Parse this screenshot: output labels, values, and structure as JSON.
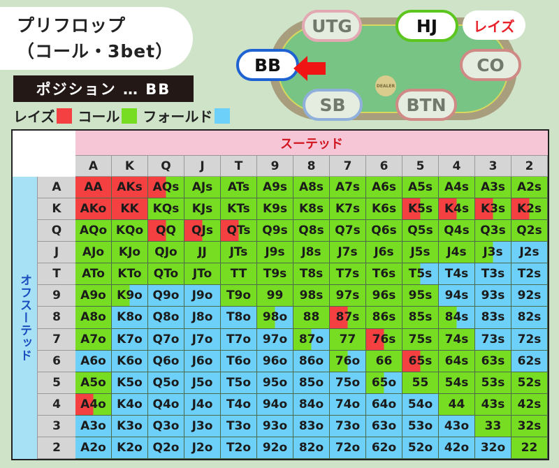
{
  "title": {
    "line1": "プリフロップ",
    "line2": "（コール・3bet）"
  },
  "position_label": "ポジション … BB",
  "legend": [
    {
      "label": "レイズ",
      "color": "#f44040"
    },
    {
      "label": "コール",
      "color": "#77dd22"
    },
    {
      "label": "フォールド",
      "color": "#6cd0f8"
    }
  ],
  "table": {
    "seats": {
      "utg": "UTG",
      "hj": "HJ",
      "bb": "BB",
      "co": "CO",
      "sb": "SB",
      "btn": "BTN"
    },
    "dealer": "DEALER",
    "hj_action": "レイズ",
    "hero_arrow_icon": "arrow-left-icon"
  },
  "chart": {
    "suited_label": "スーテッド",
    "offsuit_label": "オフスーテッド",
    "ranks": [
      "A",
      "K",
      "Q",
      "J",
      "T",
      "9",
      "8",
      "7",
      "6",
      "5",
      "4",
      "3",
      "2"
    ],
    "colors": {
      "raise": "#f44040",
      "call": "#77dd22",
      "fold": "#6cd0f8"
    },
    "rows": [
      [
        [
          "AA",
          "raise"
        ],
        [
          "AKs",
          "raise"
        ],
        [
          "AQs",
          "raise/call"
        ],
        [
          "AJs",
          "call"
        ],
        [
          "ATs",
          "call"
        ],
        [
          "A9s",
          "call"
        ],
        [
          "A8s",
          "call"
        ],
        [
          "A7s",
          "call"
        ],
        [
          "A6s",
          "call"
        ],
        [
          "A5s",
          "call"
        ],
        [
          "A4s",
          "call"
        ],
        [
          "A3s",
          "call"
        ],
        [
          "A2s",
          "call"
        ]
      ],
      [
        [
          "AKo",
          "raise"
        ],
        [
          "KK",
          "raise"
        ],
        [
          "KQs",
          "call"
        ],
        [
          "KJs",
          "call"
        ],
        [
          "KTs",
          "call"
        ],
        [
          "K9s",
          "call"
        ],
        [
          "K8s",
          "call"
        ],
        [
          "K7s",
          "call"
        ],
        [
          "K6s",
          "call"
        ],
        [
          "K5s",
          "raise/call"
        ],
        [
          "K4s",
          "raise/call"
        ],
        [
          "K3s",
          "raise/call"
        ],
        [
          "K2s",
          "raise/call"
        ]
      ],
      [
        [
          "AQo",
          "call"
        ],
        [
          "KQo",
          "call"
        ],
        [
          "QQ",
          "raise/call"
        ],
        [
          "QJs",
          "raise/call"
        ],
        [
          "QTs",
          "raise/call"
        ],
        [
          "Q9s",
          "call"
        ],
        [
          "Q8s",
          "call"
        ],
        [
          "Q7s",
          "call"
        ],
        [
          "Q6s",
          "call"
        ],
        [
          "Q5s",
          "call"
        ],
        [
          "Q4s",
          "call"
        ],
        [
          "Q3s",
          "call"
        ],
        [
          "Q2s",
          "call"
        ]
      ],
      [
        [
          "AJo",
          "call"
        ],
        [
          "KJo",
          "call"
        ],
        [
          "QJo",
          "call"
        ],
        [
          "JJ",
          "call"
        ],
        [
          "JTs",
          "call"
        ],
        [
          "J9s",
          "call"
        ],
        [
          "J8s",
          "call"
        ],
        [
          "J7s",
          "call"
        ],
        [
          "J6s",
          "call"
        ],
        [
          "J5s",
          "call"
        ],
        [
          "J4s",
          "call"
        ],
        [
          "J3s",
          "call/fold"
        ],
        [
          "J2s",
          "fold"
        ]
      ],
      [
        [
          "ATo",
          "call"
        ],
        [
          "KTo",
          "call"
        ],
        [
          "QTo",
          "call"
        ],
        [
          "JTo",
          "call"
        ],
        [
          "TT",
          "call"
        ],
        [
          "T9s",
          "call"
        ],
        [
          "T8s",
          "call"
        ],
        [
          "T7s",
          "call"
        ],
        [
          "T6s",
          "call"
        ],
        [
          "T5s",
          "call/fold"
        ],
        [
          "T4s",
          "fold"
        ],
        [
          "T3s",
          "fold"
        ],
        [
          "T2s",
          "fold"
        ]
      ],
      [
        [
          "A9o",
          "call"
        ],
        [
          "K9o",
          "call/fold"
        ],
        [
          "Q9o",
          "fold"
        ],
        [
          "J9o",
          "fold"
        ],
        [
          "T9o",
          "call"
        ],
        [
          "99",
          "call"
        ],
        [
          "98s",
          "call"
        ],
        [
          "97s",
          "call"
        ],
        [
          "96s",
          "call"
        ],
        [
          "95s",
          "call"
        ],
        [
          "94s",
          "fold"
        ],
        [
          "93s",
          "fold"
        ],
        [
          "92s",
          "fold"
        ]
      ],
      [
        [
          "A8o",
          "call"
        ],
        [
          "K8o",
          "fold"
        ],
        [
          "Q8o",
          "fold"
        ],
        [
          "J8o",
          "fold"
        ],
        [
          "T8o",
          "fold"
        ],
        [
          "98o",
          "call/fold"
        ],
        [
          "88",
          "call"
        ],
        [
          "87s",
          "raise/call"
        ],
        [
          "86s",
          "call"
        ],
        [
          "85s",
          "call"
        ],
        [
          "84s",
          "call/fold"
        ],
        [
          "83s",
          "fold"
        ],
        [
          "82s",
          "fold"
        ]
      ],
      [
        [
          "A7o",
          "call"
        ],
        [
          "K7o",
          "fold"
        ],
        [
          "Q7o",
          "fold"
        ],
        [
          "J7o",
          "fold"
        ],
        [
          "T7o",
          "fold"
        ],
        [
          "97o",
          "fold"
        ],
        [
          "87o",
          "call/fold"
        ],
        [
          "77",
          "call"
        ],
        [
          "76s",
          "raise/call"
        ],
        [
          "75s",
          "call"
        ],
        [
          "74s",
          "call"
        ],
        [
          "73s",
          "fold"
        ],
        [
          "72s",
          "fold"
        ]
      ],
      [
        [
          "A6o",
          "fold"
        ],
        [
          "K6o",
          "fold"
        ],
        [
          "Q6o",
          "fold"
        ],
        [
          "J6o",
          "fold"
        ],
        [
          "T6o",
          "fold"
        ],
        [
          "96o",
          "fold"
        ],
        [
          "86o",
          "fold"
        ],
        [
          "76o",
          "call/fold"
        ],
        [
          "66",
          "call"
        ],
        [
          "65s",
          "raise/call"
        ],
        [
          "64s",
          "call"
        ],
        [
          "63s",
          "call"
        ],
        [
          "62s",
          "fold"
        ]
      ],
      [
        [
          "A5o",
          "call"
        ],
        [
          "K5o",
          "fold"
        ],
        [
          "Q5o",
          "fold"
        ],
        [
          "J5o",
          "fold"
        ],
        [
          "T5o",
          "fold"
        ],
        [
          "95o",
          "fold"
        ],
        [
          "85o",
          "fold"
        ],
        [
          "75o",
          "fold"
        ],
        [
          "65o",
          "call/fold"
        ],
        [
          "55",
          "call"
        ],
        [
          "54s",
          "call"
        ],
        [
          "53s",
          "call"
        ],
        [
          "52s",
          "call"
        ]
      ],
      [
        [
          "A4o",
          "raise/call"
        ],
        [
          "K4o",
          "fold"
        ],
        [
          "Q4o",
          "fold"
        ],
        [
          "J4o",
          "fold"
        ],
        [
          "T4o",
          "fold"
        ],
        [
          "94o",
          "fold"
        ],
        [
          "84o",
          "fold"
        ],
        [
          "74o",
          "fold"
        ],
        [
          "64o",
          "fold"
        ],
        [
          "54o",
          "fold"
        ],
        [
          "44",
          "call"
        ],
        [
          "43s",
          "call"
        ],
        [
          "42s",
          "call"
        ]
      ],
      [
        [
          "A3o",
          "fold"
        ],
        [
          "K3o",
          "fold"
        ],
        [
          "Q3o",
          "fold"
        ],
        [
          "J3o",
          "fold"
        ],
        [
          "T3o",
          "fold"
        ],
        [
          "93o",
          "fold"
        ],
        [
          "83o",
          "fold"
        ],
        [
          "73o",
          "fold"
        ],
        [
          "63o",
          "fold"
        ],
        [
          "53o",
          "fold"
        ],
        [
          "43o",
          "fold"
        ],
        [
          "33",
          "call"
        ],
        [
          "32s",
          "call"
        ]
      ],
      [
        [
          "A2o",
          "fold"
        ],
        [
          "K2o",
          "fold"
        ],
        [
          "Q2o",
          "fold"
        ],
        [
          "J2o",
          "fold"
        ],
        [
          "T2o",
          "fold"
        ],
        [
          "92o",
          "fold"
        ],
        [
          "82o",
          "fold"
        ],
        [
          "72o",
          "fold"
        ],
        [
          "62o",
          "fold"
        ],
        [
          "52o",
          "fold"
        ],
        [
          "42o",
          "fold"
        ],
        [
          "32o",
          "fold"
        ],
        [
          "22",
          "call"
        ]
      ]
    ]
  }
}
